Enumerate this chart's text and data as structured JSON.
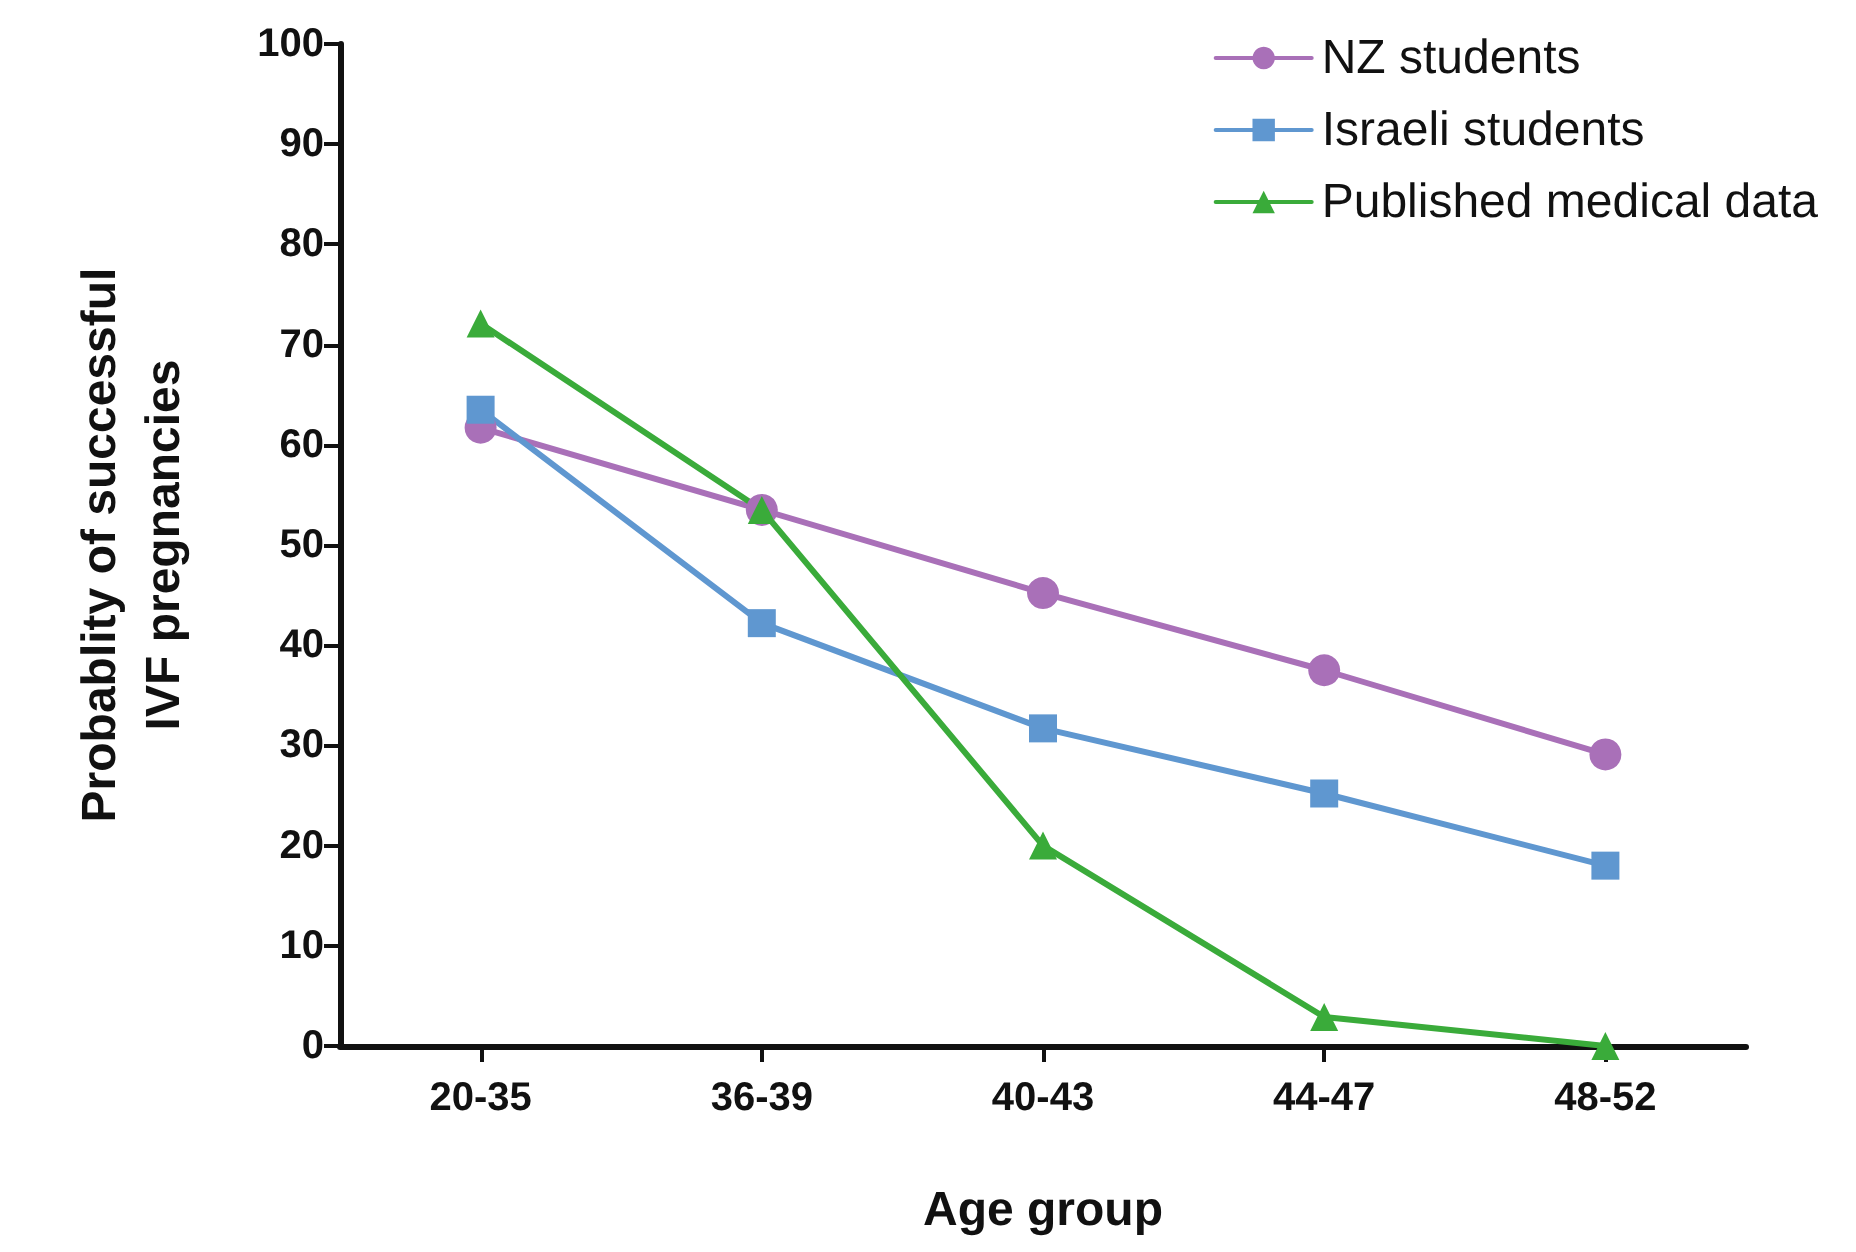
{
  "chart_data": {
    "type": "line",
    "xlabel": "Age group",
    "ylabel": "Probablity of successful\nIVF pregnancies",
    "categories": [
      "20-35",
      "36-39",
      "40-43",
      "44-47",
      "48-52"
    ],
    "series": [
      {
        "name": "NZ students",
        "color": "#a970b8",
        "marker": "circle",
        "values": [
          61.7,
          53.5,
          45.2,
          37.5,
          29.1
        ]
      },
      {
        "name": "Israeli students",
        "color": "#5f97d0",
        "marker": "square",
        "values": [
          63.5,
          42.2,
          31.7,
          25.2,
          18
        ]
      },
      {
        "name": "Published medical data",
        "color": "#3aab3a",
        "marker": "triangle",
        "values": [
          72.1,
          53.5,
          20,
          2.9,
          0
        ]
      }
    ],
    "ylim": [
      0,
      100
    ],
    "yticks": [
      0,
      10,
      20,
      30,
      40,
      50,
      60,
      70,
      80,
      90,
      100
    ],
    "grid": false,
    "legend": "top right",
    "line_style": "solid"
  }
}
